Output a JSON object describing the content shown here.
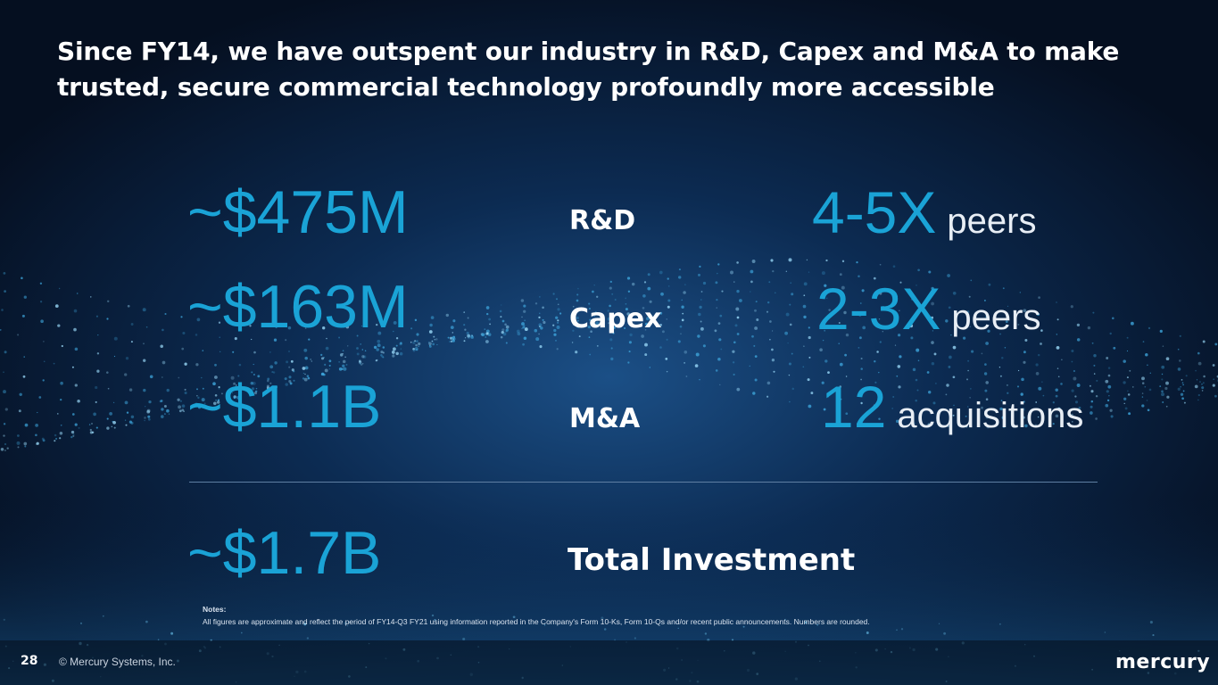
{
  "slide": {
    "title": "Since FY14, we have outspent our industry in R&D, Capex and M&A to make trusted, secure commercial technology profoundly more accessible",
    "rows": [
      {
        "amount": "~$475M",
        "category": "R&D",
        "comparison_number": "4-5X",
        "comparison_word": "peers"
      },
      {
        "amount": "~$163M",
        "category": "Capex",
        "comparison_number": "2-3X",
        "comparison_word": "peers"
      },
      {
        "amount": "~$1.1B",
        "category": "M&A",
        "comparison_number": "12",
        "comparison_word": "acquisitions"
      }
    ],
    "total": {
      "amount": "~$1.7B",
      "label": "Total Investment"
    },
    "notes": {
      "heading": "Notes:",
      "text": "All figures are approximate and reflect the period of FY14-Q3 FY21 using information reported in the Company's Form 10-Ks, Form 10-Qs and/or recent public announcements. Numbers are rounded."
    }
  },
  "footer": {
    "page_number": "28",
    "copyright": "© Mercury Systems, Inc.",
    "logo_text": "mercury"
  },
  "colors": {
    "accent_blue": "#1aa3d6",
    "background": "#06152a",
    "text": "#ffffff"
  }
}
